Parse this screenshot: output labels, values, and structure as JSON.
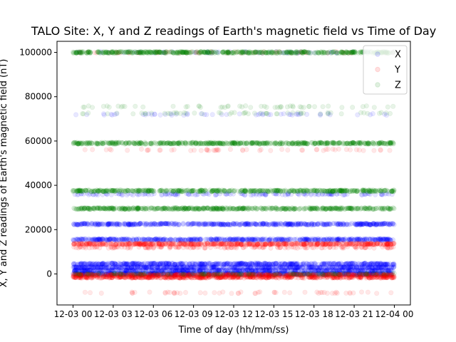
{
  "chart_data": {
    "type": "scatter",
    "title": "TALO Site: X, Y and Z readings of Earth's magnetic field vs Time of Day",
    "xlabel": "Time of day (hh/mm/ss)",
    "ylabel": "X, Y and Z readings of Earth's magnetic field (nT)",
    "x_ticks": [
      {
        "hours": 0,
        "label": "12-03 00"
      },
      {
        "hours": 3,
        "label": "12-03 03"
      },
      {
        "hours": 6,
        "label": "12-03 06"
      },
      {
        "hours": 9,
        "label": "12-03 09"
      },
      {
        "hours": 12,
        "label": "12-03 12"
      },
      {
        "hours": 15,
        "label": "12-03 15"
      },
      {
        "hours": 18,
        "label": "12-03 18"
      },
      {
        "hours": 21,
        "label": "12-03 21"
      },
      {
        "hours": 24,
        "label": "12-04 00"
      }
    ],
    "y_ticks": [
      0,
      20000,
      40000,
      60000,
      80000,
      100000
    ],
    "y_tick_labels": [
      "0",
      "20000",
      "40000",
      "60000",
      "80000",
      "100000"
    ],
    "ylim": [
      -14000,
      105000
    ],
    "x_range_hours": [
      -1.2,
      25.2
    ],
    "data_x_range_hours": [
      0,
      24
    ],
    "legend": {
      "placement": "top-right"
    },
    "grid": false,
    "series": [
      {
        "name": "X",
        "color": "#0000ff",
        "bands": [
          {
            "y": 100000,
            "density": "sparse"
          },
          {
            "y": 72000,
            "density": "sparse"
          },
          {
            "y": 36000,
            "density": "medium"
          },
          {
            "y": 22500,
            "density": "dense"
          },
          {
            "y": 15500,
            "density": "dense"
          },
          {
            "y": 4500,
            "density": "dense"
          },
          {
            "y": 3000,
            "density": "dense"
          },
          {
            "y": 1500,
            "density": "dense"
          },
          {
            "y": 0,
            "density": "dense"
          }
        ]
      },
      {
        "name": "Y",
        "color": "#ff0000",
        "bands": [
          {
            "y": 100000,
            "density": "sparse"
          },
          {
            "y": 56000,
            "density": "sparse"
          },
          {
            "y": 13500,
            "density": "dense"
          },
          {
            "y": 12000,
            "density": "medium"
          },
          {
            "y": -500,
            "density": "dense"
          },
          {
            "y": -1500,
            "density": "dense"
          },
          {
            "y": -8500,
            "density": "sparse"
          }
        ]
      },
      {
        "name": "Z",
        "color": "#008000",
        "bands": [
          {
            "y": 100000,
            "density": "dense"
          },
          {
            "y": 75500,
            "density": "sparse"
          },
          {
            "y": 72500,
            "density": "sparse"
          },
          {
            "y": 59000,
            "density": "dense"
          },
          {
            "y": 37500,
            "density": "dense"
          },
          {
            "y": 29500,
            "density": "dense"
          },
          {
            "y": 0,
            "density": "medium"
          }
        ]
      }
    ]
  }
}
